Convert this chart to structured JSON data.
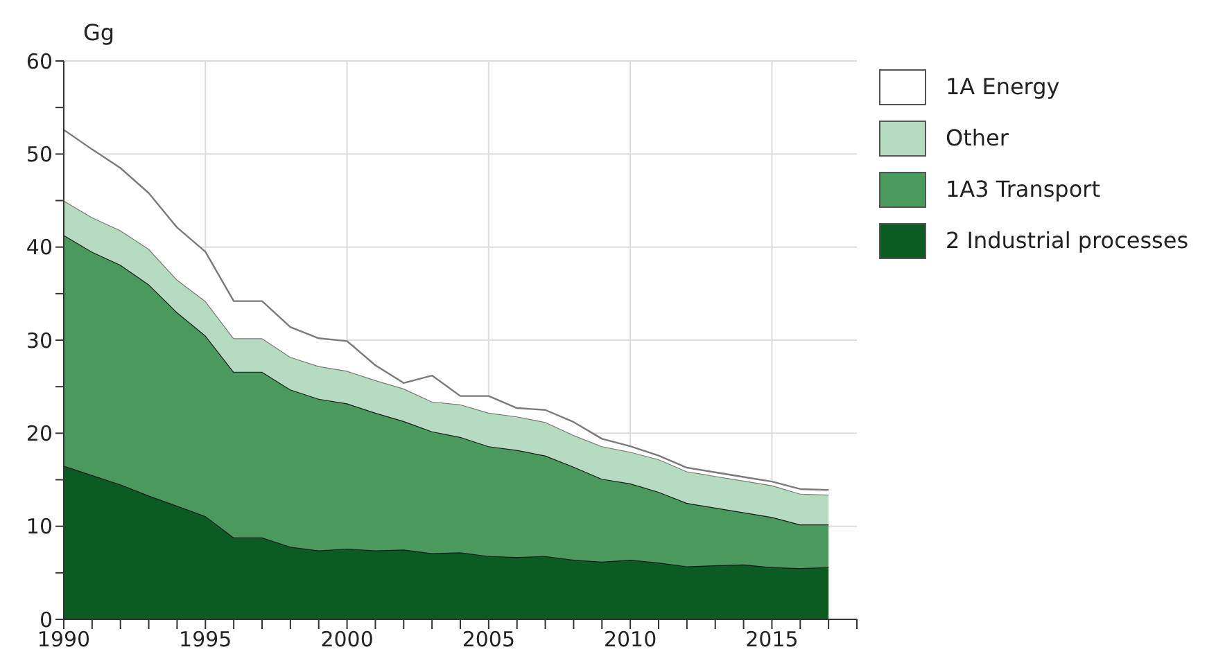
{
  "chart_data": {
    "type": "area",
    "stacked": true,
    "ylabel": "Gg",
    "x": [
      1990,
      1991,
      1992,
      1993,
      1994,
      1995,
      1996,
      1997,
      1998,
      1999,
      2000,
      2001,
      2002,
      2003,
      2004,
      2005,
      2006,
      2007,
      2008,
      2009,
      2010,
      2011,
      2012,
      2013,
      2014,
      2015,
      2016,
      2017
    ],
    "series": [
      {
        "name": "2 Industrial processes",
        "color": "#0a5c22",
        "values": [
          16.5,
          15.5,
          14.5,
          13.3,
          12.2,
          11.1,
          8.8,
          8.8,
          7.8,
          7.4,
          7.6,
          7.4,
          7.5,
          7.1,
          7.2,
          6.8,
          6.7,
          6.8,
          6.4,
          6.2,
          6.4,
          6.1,
          5.7,
          5.8,
          5.9,
          5.6,
          5.5,
          5.6
        ]
      },
      {
        "name": "1A3 Transport",
        "color": "#4a9a5e",
        "values": [
          24.8,
          24.0,
          23.6,
          22.7,
          20.8,
          19.4,
          17.8,
          17.8,
          16.9,
          16.3,
          15.6,
          14.8,
          13.8,
          13.1,
          12.4,
          11.8,
          11.5,
          10.8,
          10.0,
          8.9,
          8.2,
          7.6,
          6.8,
          6.2,
          5.6,
          5.4,
          4.7,
          4.6
        ]
      },
      {
        "name": "Other",
        "color": "#b5dcc0",
        "values": [
          3.7,
          3.7,
          3.7,
          3.8,
          3.5,
          3.7,
          3.6,
          3.6,
          3.5,
          3.5,
          3.5,
          3.5,
          3.5,
          3.2,
          3.5,
          3.6,
          3.6,
          3.6,
          3.4,
          3.5,
          3.4,
          3.5,
          3.4,
          3.4,
          3.4,
          3.4,
          3.3,
          3.2
        ]
      },
      {
        "name": "1A Energy",
        "color": "#ffffff",
        "values": [
          7.6,
          7.3,
          6.7,
          6.0,
          5.6,
          5.3,
          4.0,
          4.0,
          3.2,
          3.0,
          3.2,
          1.6,
          0.6,
          2.8,
          0.9,
          1.8,
          0.9,
          1.3,
          1.4,
          0.8,
          0.6,
          0.4,
          0.4,
          0.4,
          0.4,
          0.4,
          0.5,
          0.5
        ]
      }
    ],
    "xlim": [
      1990,
      2018
    ],
    "xticks": [
      1990,
      {
        "value": 1991,
        "label": null
      },
      {
        "value": 1992,
        "label": null
      },
      {
        "value": 1993,
        "label": null
      },
      {
        "value": 1994,
        "label": null
      },
      1995,
      {
        "value": 1996,
        "label": null
      },
      {
        "value": 1997,
        "label": null
      },
      {
        "value": 1998,
        "label": null
      },
      {
        "value": 1999,
        "label": null
      },
      2000,
      {
        "value": 2001,
        "label": null
      },
      {
        "value": 2002,
        "label": null
      },
      {
        "value": 2003,
        "label": null
      },
      {
        "value": 2004,
        "label": null
      },
      2005,
      {
        "value": 2006,
        "label": null
      },
      {
        "value": 2007,
        "label": null
      },
      {
        "value": 2008,
        "label": null
      },
      {
        "value": 2009,
        "label": null
      },
      2010,
      {
        "value": 2011,
        "label": null
      },
      {
        "value": 2012,
        "label": null
      },
      {
        "value": 2013,
        "label": null
      },
      {
        "value": 2014,
        "label": null
      },
      2015,
      {
        "value": 2016,
        "label": null
      },
      {
        "value": 2017,
        "label": null
      },
      {
        "value": 2018,
        "label": null
      }
    ],
    "ylim": [
      0,
      60
    ],
    "yticks": [
      0,
      {
        "value": 5,
        "label": null
      },
      10,
      {
        "value": 15,
        "label": null
      },
      20,
      {
        "value": 25,
        "label": null
      },
      30,
      {
        "value": 35,
        "label": null
      },
      40,
      {
        "value": 45,
        "label": null
      },
      50,
      {
        "value": 55,
        "label": null
      },
      60
    ],
    "grid": true,
    "legend": "right"
  }
}
